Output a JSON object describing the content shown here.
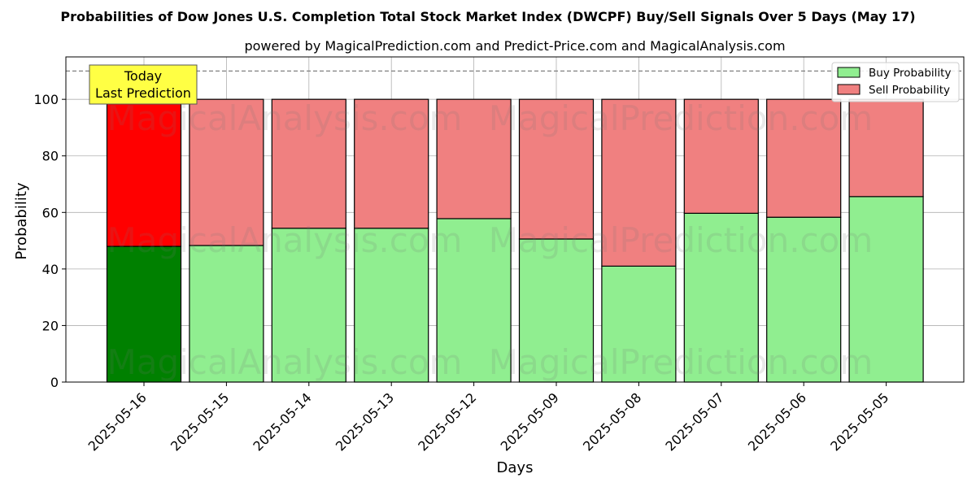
{
  "chart_data": {
    "type": "bar",
    "title": "Probabilities of Dow Jones U.S. Completion Total Stock Market Index (DWCPF) Buy/Sell Signals Over 5 Days (May 17)",
    "subtitle": "powered by MagicalPrediction.com and Predict-Price.com and MagicalAnalysis.com",
    "xlabel": "Days",
    "ylabel": "Probability",
    "ylim": [
      0,
      115
    ],
    "yticks": [
      0,
      20,
      40,
      60,
      80,
      100
    ],
    "reference_line": 110,
    "grid": true,
    "legend_position": "top-right",
    "categories": [
      "2025-05-16",
      "2025-05-15",
      "2025-05-14",
      "2025-05-13",
      "2025-05-12",
      "2025-05-09",
      "2025-05-08",
      "2025-05-07",
      "2025-05-06",
      "2025-05-05"
    ],
    "series": [
      {
        "name": "Buy Probability",
        "values": [
          48.0,
          48.3,
          54.4,
          54.4,
          57.8,
          50.6,
          41.0,
          59.7,
          58.3,
          65.6
        ]
      },
      {
        "name": "Sell Probability",
        "values": [
          52.0,
          51.7,
          45.6,
          45.6,
          42.2,
          49.4,
          59.0,
          40.3,
          41.7,
          34.4
        ]
      }
    ],
    "colors": {
      "buy": "#90ee90",
      "sell": "#f08080",
      "buy_highlight": "#008000",
      "sell_highlight": "#ff0000",
      "annotation_bg": "#ffff44"
    },
    "annotation": {
      "line1": "Today",
      "line2": "Last Prediction"
    },
    "watermarks": [
      "MagicalAnalysis.com",
      "MagicalPrediction.com"
    ]
  }
}
